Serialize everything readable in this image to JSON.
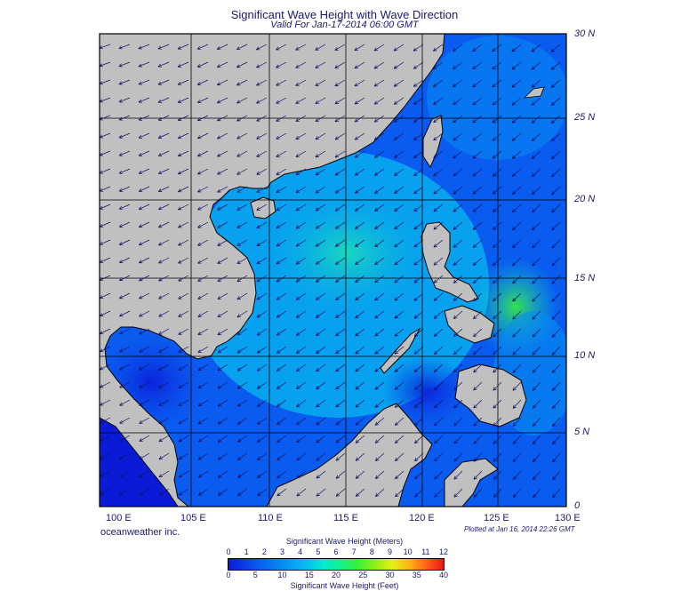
{
  "title": "Significant Wave Height with Wave Direction",
  "subtitle": "Valid For Jan-17-2014 06:00 GMT",
  "credit": "oceanweather inc.",
  "plotted": "Plotted at Jan 16, 2014 22:26 GMT",
  "lat_labels": [
    "30 N",
    "25 N",
    "20 N",
    "15 N",
    "10 N",
    "5 N",
    "0"
  ],
  "lon_labels": [
    "100 E",
    "105 E",
    "110 E",
    "115 E",
    "120 E",
    "125 E",
    "130 E"
  ],
  "colorbar": {
    "meters_title": "Significant Wave Height (Meters)",
    "feet_title": "Significant Wave Height (Feet)",
    "meters_ticks": [
      "0",
      "1",
      "2",
      "3",
      "4",
      "5",
      "6",
      "7",
      "8",
      "9",
      "10",
      "11",
      "12"
    ],
    "feet_ticks": [
      "0",
      "5",
      "10",
      "15",
      "20",
      "25",
      "30",
      "35",
      "40"
    ]
  },
  "colors": {
    "land": "#c0c0c0",
    "sea_low": "#0a1bd8",
    "sea_mid": "#07b0ee",
    "sea_high": "#3af03a",
    "arrow": "#101060"
  },
  "icons": [
    "wave-direction-arrow-icon"
  ]
}
